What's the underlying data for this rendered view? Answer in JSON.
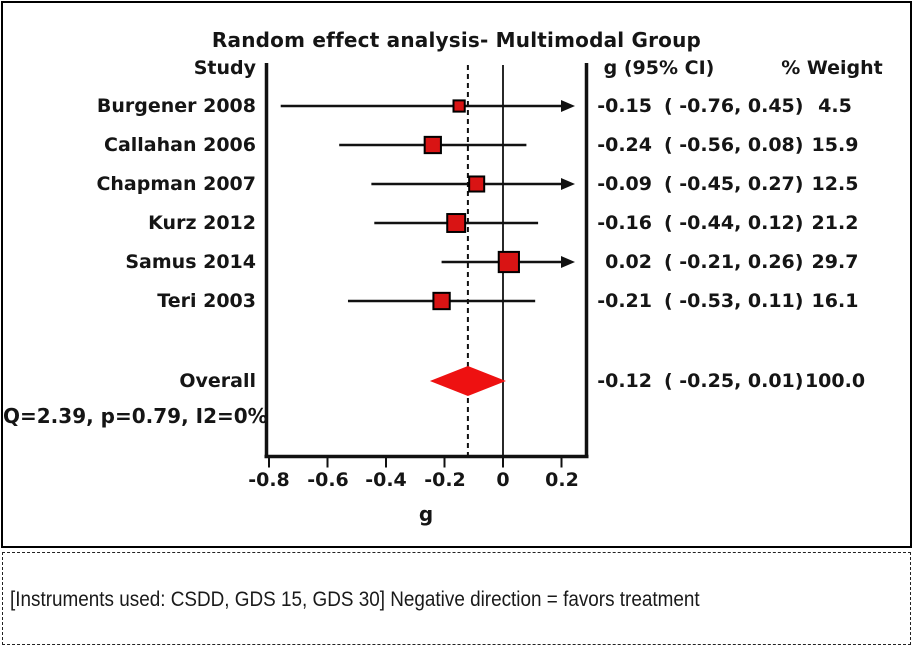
{
  "title": "Random effect analysis- Multimodal Group",
  "columns": {
    "study": "Study",
    "effect": "g (95% CI)",
    "weight": "% Weight"
  },
  "note": "[Instruments used: CSDD, GDS 15, GDS 30] Negative direction = favors treatment",
  "colors": {
    "marker_red": "#d91414",
    "diamond_red": "#ee1111",
    "line_black": "#111111"
  },
  "chart_data": {
    "type": "forest",
    "title": "Random effect analysis- Multimodal Group",
    "xlabel": "g",
    "x_ticks": [
      -0.8,
      -0.6,
      -0.4,
      -0.2,
      0,
      0.2
    ],
    "x_tick_labels": [
      "-0.8",
      "-0.6",
      "-0.4",
      "-0.2",
      "0",
      "0.2"
    ],
    "xlim": [
      -0.82,
      0.29
    ],
    "zero_line": 0,
    "dashed_line_at": -0.12,
    "studies": [
      {
        "label": "Burgener 2008",
        "est": -0.15,
        "lo": -0.76,
        "hi": 0.45,
        "est_text": "-0.15",
        "ci_text": "( -0.76, 0.45)",
        "weight": 4.5,
        "weight_text": "4.5",
        "arrow_right": true
      },
      {
        "label": "Callahan 2006",
        "est": -0.24,
        "lo": -0.56,
        "hi": 0.08,
        "est_text": "-0.24",
        "ci_text": "( -0.56, 0.08)",
        "weight": 15.9,
        "weight_text": "15.9",
        "arrow_right": false
      },
      {
        "label": "Chapman 2007",
        "est": -0.09,
        "lo": -0.45,
        "hi": 0.27,
        "est_text": "-0.09",
        "ci_text": "( -0.45, 0.27)",
        "weight": 12.5,
        "weight_text": "12.5",
        "arrow_right": true
      },
      {
        "label": "Kurz 2012",
        "est": -0.16,
        "lo": -0.44,
        "hi": 0.12,
        "est_text": "-0.16",
        "ci_text": "( -0.44, 0.12)",
        "weight": 21.2,
        "weight_text": "21.2",
        "arrow_right": false
      },
      {
        "label": "Samus 2014",
        "est": 0.02,
        "lo": -0.21,
        "hi": 0.26,
        "est_text": "0.02",
        "ci_text": "( -0.21, 0.26)",
        "weight": 29.7,
        "weight_text": "29.7",
        "arrow_right": true
      },
      {
        "label": "Teri 2003",
        "est": -0.21,
        "lo": -0.53,
        "hi": 0.11,
        "est_text": "-0.21",
        "ci_text": "( -0.53, 0.11)",
        "weight": 16.1,
        "weight_text": "16.1",
        "arrow_right": false
      }
    ],
    "overall": {
      "label": "Overall",
      "est": -0.12,
      "lo": -0.25,
      "hi": 0.01,
      "est_text": "-0.12",
      "ci_text": "( -0.25, 0.01)",
      "weight_text": "100.0"
    },
    "heterogeneity": "Q=2.39, p=0.79, I2=0%"
  }
}
